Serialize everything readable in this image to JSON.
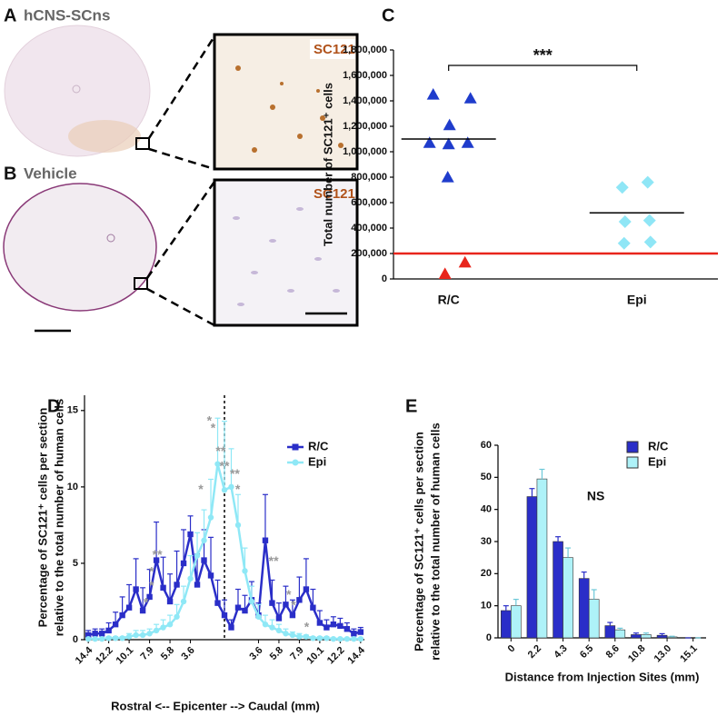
{
  "panel_a": {
    "label": "A",
    "title": "hCNS-SCns",
    "stain": "SC121"
  },
  "panel_b": {
    "label": "B",
    "title": "Vehicle",
    "stain": "SC121"
  },
  "chart_data": [
    {
      "type": "strip",
      "panel_label": "C",
      "ylabel": "Total number of SC121⁺ cells",
      "categories": [
        "R/C",
        "Epi"
      ],
      "groups": [
        {
          "category": 0,
          "marker": "triangle",
          "color": "#1f3ccc",
          "values": [
            1450000,
            1420000,
            1210000,
            1070000,
            1060000,
            1070000,
            800000
          ]
        },
        {
          "category": 0,
          "marker": "triangle",
          "color": "#e8251c",
          "values": [
            40000,
            130000
          ]
        },
        {
          "category": 1,
          "marker": "diamond",
          "color": "#8fe6f6",
          "values": [
            760000,
            720000,
            460000,
            450000,
            280000,
            290000
          ]
        }
      ],
      "means": [
        1100000,
        520000
      ],
      "threshold": 200000,
      "threshold_color": "#e8251c",
      "significance": "***",
      "ylim": [
        0,
        1800000
      ],
      "yticks": [
        0,
        {
          "value": 200000,
          "label": "200,000"
        },
        {
          "value": 400000,
          "label": "400,000"
        },
        {
          "value": 600000,
          "label": "600,000"
        },
        {
          "value": 800000,
          "label": "800,000"
        },
        {
          "value": 1000000,
          "label": "1,000,000"
        },
        {
          "value": 1200000,
          "label": "1,200,000"
        },
        {
          "value": 1400000,
          "label": "1,400,000"
        },
        {
          "value": 1600000,
          "label": "1,600,000"
        },
        {
          "value": 1800000,
          "label": "1,800,000"
        }
      ]
    },
    {
      "type": "line",
      "panel_label": "D",
      "ylabel": [
        "Percentage of SC121⁺ cells per section",
        "relative to the total number of human cells"
      ],
      "xlabel": "Rostral <--  Epicenter --> Caudal (mm)",
      "x": [
        -14.4,
        -13.68,
        -12.96,
        -12.24,
        -11.52,
        -10.8,
        -10.08,
        -9.36,
        -8.64,
        -7.92,
        -7.2,
        -6.48,
        -5.76,
        -5.04,
        -4.32,
        -3.6,
        -2.88,
        -2.16,
        -1.44,
        -0.72,
        0,
        0.72,
        1.44,
        2.16,
        2.88,
        3.6,
        4.32,
        5.04,
        5.76,
        6.48,
        7.2,
        7.92,
        8.64,
        9.36,
        10.08,
        10.8,
        11.52,
        12.24,
        12.96,
        13.68,
        14.4
      ],
      "series": [
        {
          "name": "R/C",
          "color": "#2a2ec8",
          "marker": "square",
          "values": [
            0.3,
            0.4,
            0.4,
            0.6,
            1.0,
            1.6,
            2.1,
            3.3,
            1.9,
            2.8,
            5.2,
            3.4,
            2.5,
            3.6,
            5.0,
            6.9,
            3.6,
            5.2,
            4.2,
            2.4,
            1.6,
            0.8,
            2.1,
            1.9,
            2.6,
            1.6,
            6.5,
            2.4,
            1.4,
            2.3,
            1.6,
            2.6,
            3.3,
            2.1,
            1.1,
            0.8,
            1.0,
            0.9,
            0.7,
            0.4,
            0.5
          ],
          "errors": [
            0.3,
            0.3,
            0.3,
            0.5,
            0.8,
            1.2,
            1.5,
            2.0,
            1.5,
            1.8,
            2.5,
            2.0,
            1.8,
            2.2,
            2.2,
            1.2,
            2.0,
            2.0,
            2.5,
            1.5,
            1.0,
            0.5,
            1.2,
            1.0,
            1.2,
            0.8,
            3.0,
            1.5,
            1.0,
            1.2,
            1.0,
            1.5,
            2.0,
            1.2,
            0.8,
            0.5,
            0.5,
            0.5,
            0.4,
            0.3,
            0.3
          ]
        },
        {
          "name": "Epi",
          "color": "#8fe8f6",
          "marker": "circle",
          "values": [
            0.05,
            0.05,
            0.05,
            0.1,
            0.1,
            0.1,
            0.2,
            0.3,
            0.3,
            0.4,
            0.6,
            0.8,
            1.0,
            1.5,
            2.5,
            4.0,
            5.5,
            6.5,
            8.0,
            11.5,
            9.8,
            10.0,
            7.5,
            4.5,
            2.5,
            1.5,
            1.0,
            0.8,
            0.6,
            0.4,
            0.3,
            0.2,
            0.2,
            0.1,
            0.1,
            0.1,
            0.05,
            0.05,
            0.05,
            0.05,
            0.05
          ],
          "errors": [
            0.05,
            0.05,
            0.05,
            0.1,
            0.1,
            0.1,
            0.2,
            0.3,
            0.3,
            0.3,
            0.4,
            0.5,
            0.6,
            0.8,
            1.0,
            1.5,
            1.5,
            2.0,
            2.5,
            3.0,
            4.5,
            2.5,
            2.0,
            1.5,
            1.0,
            0.8,
            0.6,
            0.5,
            0.4,
            0.3,
            0.2,
            0.2,
            0.1,
            0.1,
            0.1,
            0.1,
            0.05,
            0.05,
            0.05,
            0.05,
            0.05
          ]
        }
      ],
      "xlim": [
        -14.8,
        14.8
      ],
      "xticks": [
        {
          "value": -14.4,
          "label": "14.4"
        },
        {
          "value": -12.24,
          "label": "12.2"
        },
        {
          "value": -10.08,
          "label": "10.1"
        },
        {
          "value": -7.92,
          "label": "7.9"
        },
        {
          "value": -5.76,
          "label": "5.8"
        },
        {
          "value": -3.6,
          "label": "3.6"
        },
        3.6,
        {
          "value": 5.76,
          "label": "5.8"
        },
        {
          "value": 7.92,
          "label": "7.9"
        },
        {
          "value": 10.08,
          "label": "10.1"
        },
        {
          "value": 12.24,
          "label": "12.2"
        },
        14.4
      ],
      "ylim": [
        0,
        16
      ],
      "yticks": [
        0,
        5,
        10,
        15
      ],
      "center_line": 0,
      "legend": "upper right",
      "annotations": [
        {
          "text": "*",
          "x": -1.6,
          "y": 14.3
        },
        {
          "text": "*",
          "x": -1.2,
          "y": 13.8
        },
        {
          "text": "**",
          "x": -0.4,
          "y": 12.3
        },
        {
          "text": "**",
          "x": 0,
          "y": 11.3
        },
        {
          "text": "**",
          "x": 1.1,
          "y": 10.8
        },
        {
          "text": "*",
          "x": -2.5,
          "y": 9.8
        },
        {
          "text": "*",
          "x": 1.4,
          "y": 9.8
        },
        {
          "text": "**",
          "x": -7.1,
          "y": 5.5
        },
        {
          "text": "*",
          "x": -7.7,
          "y": 4.4
        },
        {
          "text": "*",
          "x": -7.7,
          "y": 3.5
        },
        {
          "text": "*",
          "x": -8.3,
          "y": 2.4
        },
        {
          "text": "**",
          "x": 5.2,
          "y": 5.1
        },
        {
          "text": "*",
          "x": 6.8,
          "y": 2.9
        },
        {
          "text": "*",
          "x": 7.3,
          "y": 2.2
        },
        {
          "text": "*",
          "x": 8.7,
          "y": 0.8
        }
      ]
    },
    {
      "type": "bar",
      "panel_label": "E",
      "ylabel": [
        "Percentage of SC121⁺ cells per section",
        "relative to the total number of human cells"
      ],
      "xlabel": "Distance from Injection Sites  (mm)",
      "categories": [
        "0",
        "2.2",
        "4.3",
        "6.5",
        "8.6",
        "10.8",
        "13.0",
        "15.1"
      ],
      "series": [
        {
          "name": "R/C",
          "color": "#2a2ec8",
          "values": [
            8.5,
            44,
            30,
            18.5,
            3.8,
            1,
            0.8,
            0
          ],
          "errors": [
            1.5,
            2.5,
            1.5,
            2,
            1,
            0.5,
            0.5,
            0
          ]
        },
        {
          "name": "Epi",
          "color": "#aef2f8",
          "values": [
            10,
            49.5,
            25,
            12,
            2.5,
            1,
            0.3,
            0
          ],
          "errors": [
            2,
            3,
            3,
            3,
            0.5,
            0.5,
            0.2,
            0
          ]
        }
      ],
      "ylim": [
        0,
        60
      ],
      "yticks": [
        0,
        10,
        20,
        30,
        40,
        50,
        60
      ],
      "annotation": "NS",
      "legend": "upper right"
    }
  ]
}
